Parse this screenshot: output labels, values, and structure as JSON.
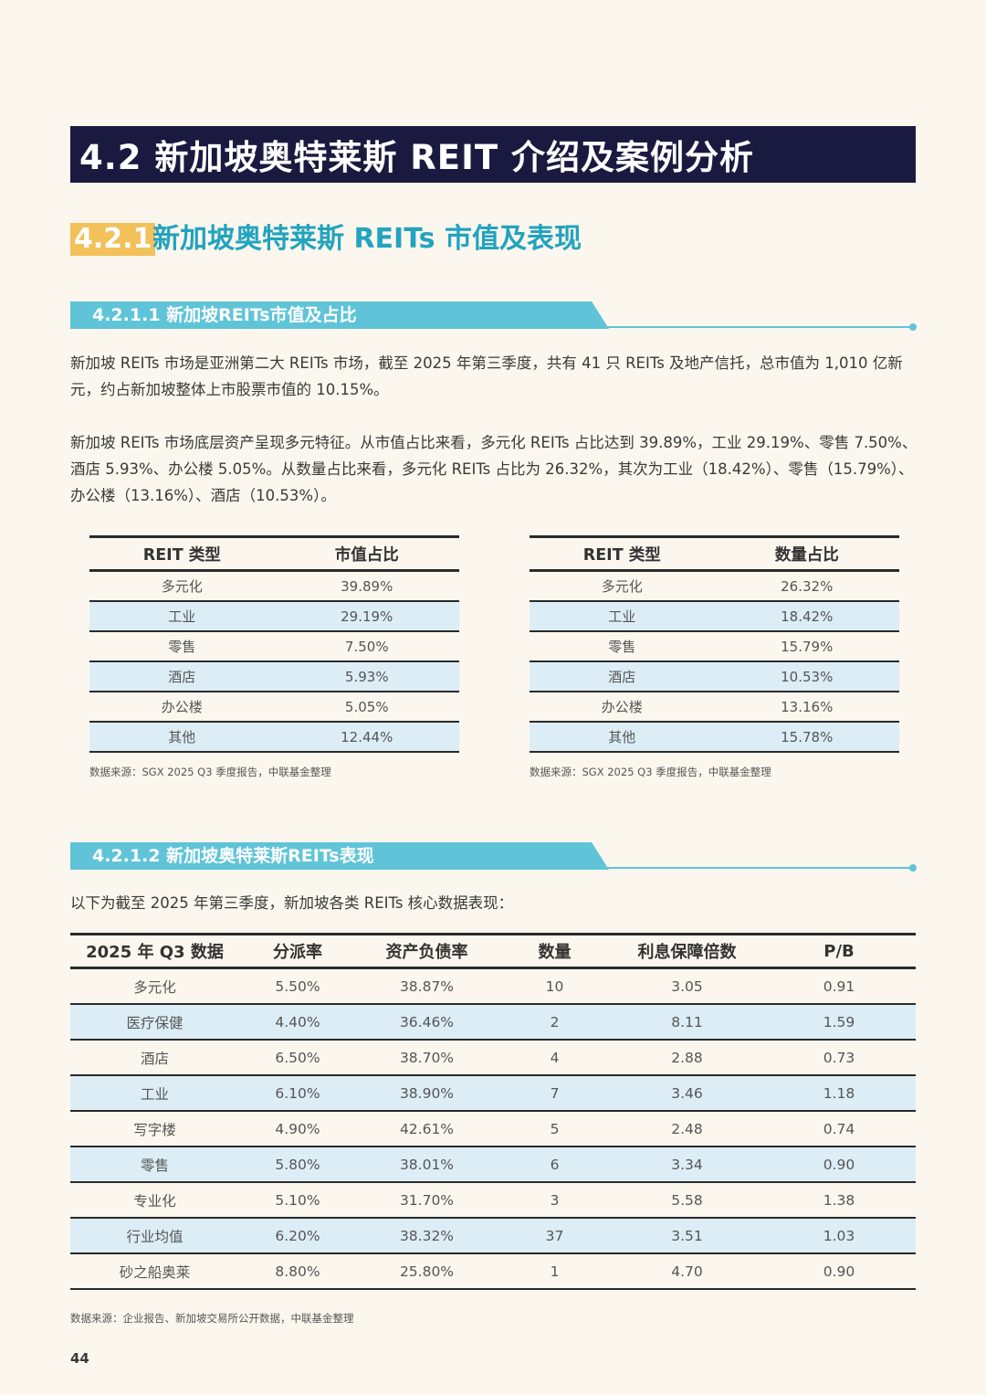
{
  "main_title": "4.2 新加坡奥特莱斯 REIT 介绍及案例分析",
  "section": {
    "number": "4.2.1",
    "title": "新加坡奥特莱斯 REITs 市值及表现"
  },
  "sub1": {
    "title": "4.2.1.1  新加坡REITs市值及占比",
    "para1": "新加坡 REITs 市场是亚洲第二大 REITs 市场，截至 2025 年第三季度，共有 41 只 REITs 及地产信托，总市值为 1,010 亿新元，约占新加坡整体上市股票市值的 10.15%。",
    "para2": "新加坡 REITs 市场底层资产呈现多元特征。从市值占比来看，多元化 REITs 占比达到 39.89%，工业 29.19%、零售 7.50%、酒店 5.93%、办公楼 5.05%。从数量占比来看，多元化 REITs 占比为 26.32%，其次为工业（18.42%）、零售（15.79%）、办公楼（13.16%）、酒店（10.53%）。"
  },
  "table_cap": {
    "headers": [
      "REIT 类型",
      "市值占比"
    ],
    "rows": [
      [
        "多元化",
        "39.89%"
      ],
      [
        "工业",
        "29.19%"
      ],
      [
        "零售",
        "7.50%"
      ],
      [
        "酒店",
        "5.93%"
      ],
      [
        "办公楼",
        "5.05%"
      ],
      [
        "其他",
        "12.44%"
      ]
    ],
    "source": "数据来源：SGX 2025 Q3 季度报告，中联基金整理"
  },
  "table_count": {
    "headers": [
      "REIT 类型",
      "数量占比"
    ],
    "rows": [
      [
        "多元化",
        "26.32%"
      ],
      [
        "工业",
        "18.42%"
      ],
      [
        "零售",
        "15.79%"
      ],
      [
        "酒店",
        "10.53%"
      ],
      [
        "办公楼",
        "13.16%"
      ],
      [
        "其他",
        "15.78%"
      ]
    ],
    "source": "数据来源：SGX 2025 Q3 季度报告，中联基金整理"
  },
  "sub2": {
    "title": "4.2.1.2  新加坡奥特莱斯REITs表现",
    "intro": "以下为截至 2025 年第三季度，新加坡各类 REITs 核心数据表现："
  },
  "table_perf": {
    "headers": [
      "2025 年 Q3 数据",
      "分派率",
      "资产负债率",
      "数量",
      "利息保障倍数",
      "P/B"
    ],
    "rows": [
      [
        "多元化",
        "5.50%",
        "38.87%",
        "10",
        "3.05",
        "0.91"
      ],
      [
        "医疗保健",
        "4.40%",
        "36.46%",
        "2",
        "8.11",
        "1.59"
      ],
      [
        "酒店",
        "6.50%",
        "38.70%",
        "4",
        "2.88",
        "0.73"
      ],
      [
        "工业",
        "6.10%",
        "38.90%",
        "7",
        "3.46",
        "1.18"
      ],
      [
        "写字楼",
        "4.90%",
        "42.61%",
        "5",
        "2.48",
        "0.74"
      ],
      [
        "零售",
        "5.80%",
        "38.01%",
        "6",
        "3.34",
        "0.90"
      ],
      [
        "专业化",
        "5.10%",
        "31.70%",
        "3",
        "5.58",
        "1.38"
      ],
      [
        "行业均值",
        "6.20%",
        "38.32%",
        "37",
        "3.51",
        "1.03"
      ],
      [
        "砂之船奥莱",
        "8.80%",
        "25.80%",
        "1",
        "4.70",
        "0.90"
      ]
    ],
    "source": "数据来源：企业报告、新加坡交易所公开数据，中联基金整理"
  },
  "page_number": "44"
}
